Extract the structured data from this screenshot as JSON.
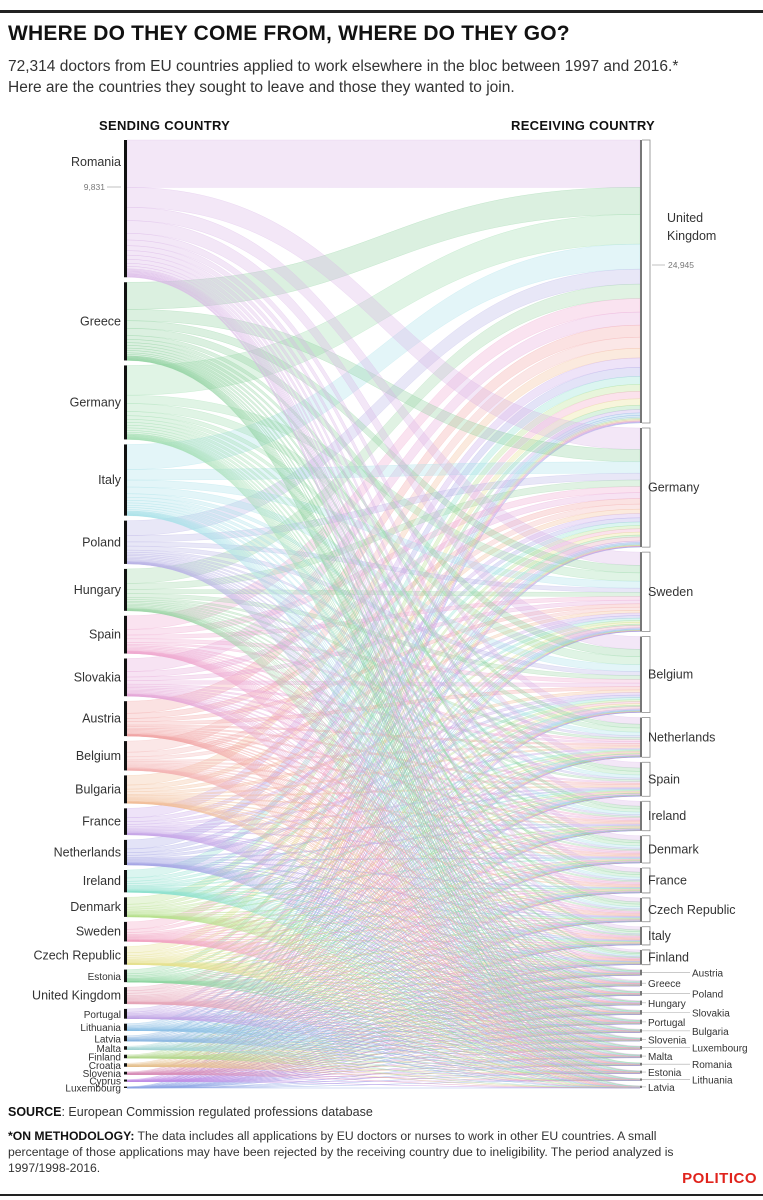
{
  "header": {
    "title": "WHERE DO THEY COME FROM, WHERE DO THEY GO?",
    "subtitle_line1": "72,314 doctors from EU countries applied to work elsewhere in the bloc between 1997 and 2016.*",
    "subtitle_line2": "Here are the countries they sought to leave and those they wanted to join."
  },
  "chart_data": {
    "type": "sankey",
    "left_heading": "SENDING COUNTRY",
    "right_heading": "RECEIVING COUNTRY",
    "total": 72314,
    "sending": [
      {
        "name": "Romania",
        "value": 9831,
        "value_label": "9,831",
        "color": "#d9b3e6"
      },
      {
        "name": "Greece",
        "value": 5600,
        "color": "#8fd19e"
      },
      {
        "name": "Germany",
        "value": 5300,
        "color": "#9fdcae"
      },
      {
        "name": "Italy",
        "value": 5100,
        "color": "#a8e0e8"
      },
      {
        "name": "Poland",
        "value": 3100,
        "color": "#b9b3e6"
      },
      {
        "name": "Hungary",
        "value": 3000,
        "color": "#9fd6a8"
      },
      {
        "name": "Spain",
        "value": 2700,
        "color": "#f0a8cf"
      },
      {
        "name": "Slovakia",
        "value": 2700,
        "color": "#e6a8d9"
      },
      {
        "name": "Austria",
        "value": 2500,
        "color": "#f2a6a6"
      },
      {
        "name": "Belgium",
        "value": 2100,
        "color": "#f4b3b3"
      },
      {
        "name": "Bulgaria",
        "value": 2000,
        "color": "#f2bf99"
      },
      {
        "name": "France",
        "value": 1900,
        "color": "#c9a8e8"
      },
      {
        "name": "Netherlands",
        "value": 1800,
        "color": "#a8a8e6"
      },
      {
        "name": "Ireland",
        "value": 1600,
        "color": "#8fe0cf"
      },
      {
        "name": "Denmark",
        "value": 1400,
        "color": "#b8e08f"
      },
      {
        "name": "Sweden",
        "value": 1400,
        "color": "#f2a6c4"
      },
      {
        "name": "Czech Republic",
        "value": 1300,
        "color": "#e6e08f"
      },
      {
        "name": "Estonia",
        "value": 900,
        "color": "#8fd6a0"
      },
      {
        "name": "United Kingdom",
        "value": 1200,
        "color": "#e6a6b8"
      },
      {
        "name": "Portugal",
        "value": 700,
        "color": "#c2a6e6"
      },
      {
        "name": "Lithuania",
        "value": 500,
        "color": "#8fc2e6"
      },
      {
        "name": "Latvia",
        "value": 400,
        "color": "#8fb8e0"
      },
      {
        "name": "Malta",
        "value": 250,
        "color": "#a6d6d6"
      },
      {
        "name": "Finland",
        "value": 250,
        "color": "#b3d98f"
      },
      {
        "name": "Croatia",
        "value": 250,
        "color": "#e6c28f"
      },
      {
        "name": "Slovenia",
        "value": 200,
        "color": "#d98fb8"
      },
      {
        "name": "Cyprus",
        "value": 150,
        "color": "#c28fe6"
      },
      {
        "name": "Luxembourg",
        "value": 100,
        "color": "#8fa6e6"
      }
    ],
    "receiving": [
      {
        "name": "United Kingdom",
        "value": 24945,
        "value_label": "24,945"
      },
      {
        "name": "Germany",
        "value": 10500
      },
      {
        "name": "Sweden",
        "value": 7000
      },
      {
        "name": "Belgium",
        "value": 6700
      },
      {
        "name": "Netherlands",
        "value": 3500
      },
      {
        "name": "Spain",
        "value": 3000
      },
      {
        "name": "Ireland",
        "value": 2600
      },
      {
        "name": "Denmark",
        "value": 2400
      },
      {
        "name": "France",
        "value": 2200
      },
      {
        "name": "Czech Republic",
        "value": 2100
      },
      {
        "name": "Italy",
        "value": 1600
      },
      {
        "name": "Finland",
        "value": 1300
      },
      {
        "name": "Austria",
        "value": 500
      },
      {
        "name": "Greece",
        "value": 500
      },
      {
        "name": "Poland",
        "value": 400
      },
      {
        "name": "Hungary",
        "value": 400
      },
      {
        "name": "Slovakia",
        "value": 400
      },
      {
        "name": "Portugal",
        "value": 400
      },
      {
        "name": "Bulgaria",
        "value": 300
      },
      {
        "name": "Slovenia",
        "value": 300
      },
      {
        "name": "Luxembourg",
        "value": 300
      },
      {
        "name": "Malta",
        "value": 300
      },
      {
        "name": "Romania",
        "value": 250
      },
      {
        "name": "Estonia",
        "value": 250
      },
      {
        "name": "Lithuania",
        "value": 200
      },
      {
        "name": "Latvia",
        "value": 200
      }
    ]
  },
  "footer": {
    "source_label": "SOURCE",
    "source_text": ": European Commission regulated professions database",
    "method_label": "*ON METHODOLOGY:",
    "method_text": " The data includes all applications by EU doctors or nurses to work in other EU countries. A small percentage of those applications may have been rejected by the receiving country due to ineligibility. The period analyzed is 1997/1998-2016.",
    "logo": "POLITICO"
  }
}
